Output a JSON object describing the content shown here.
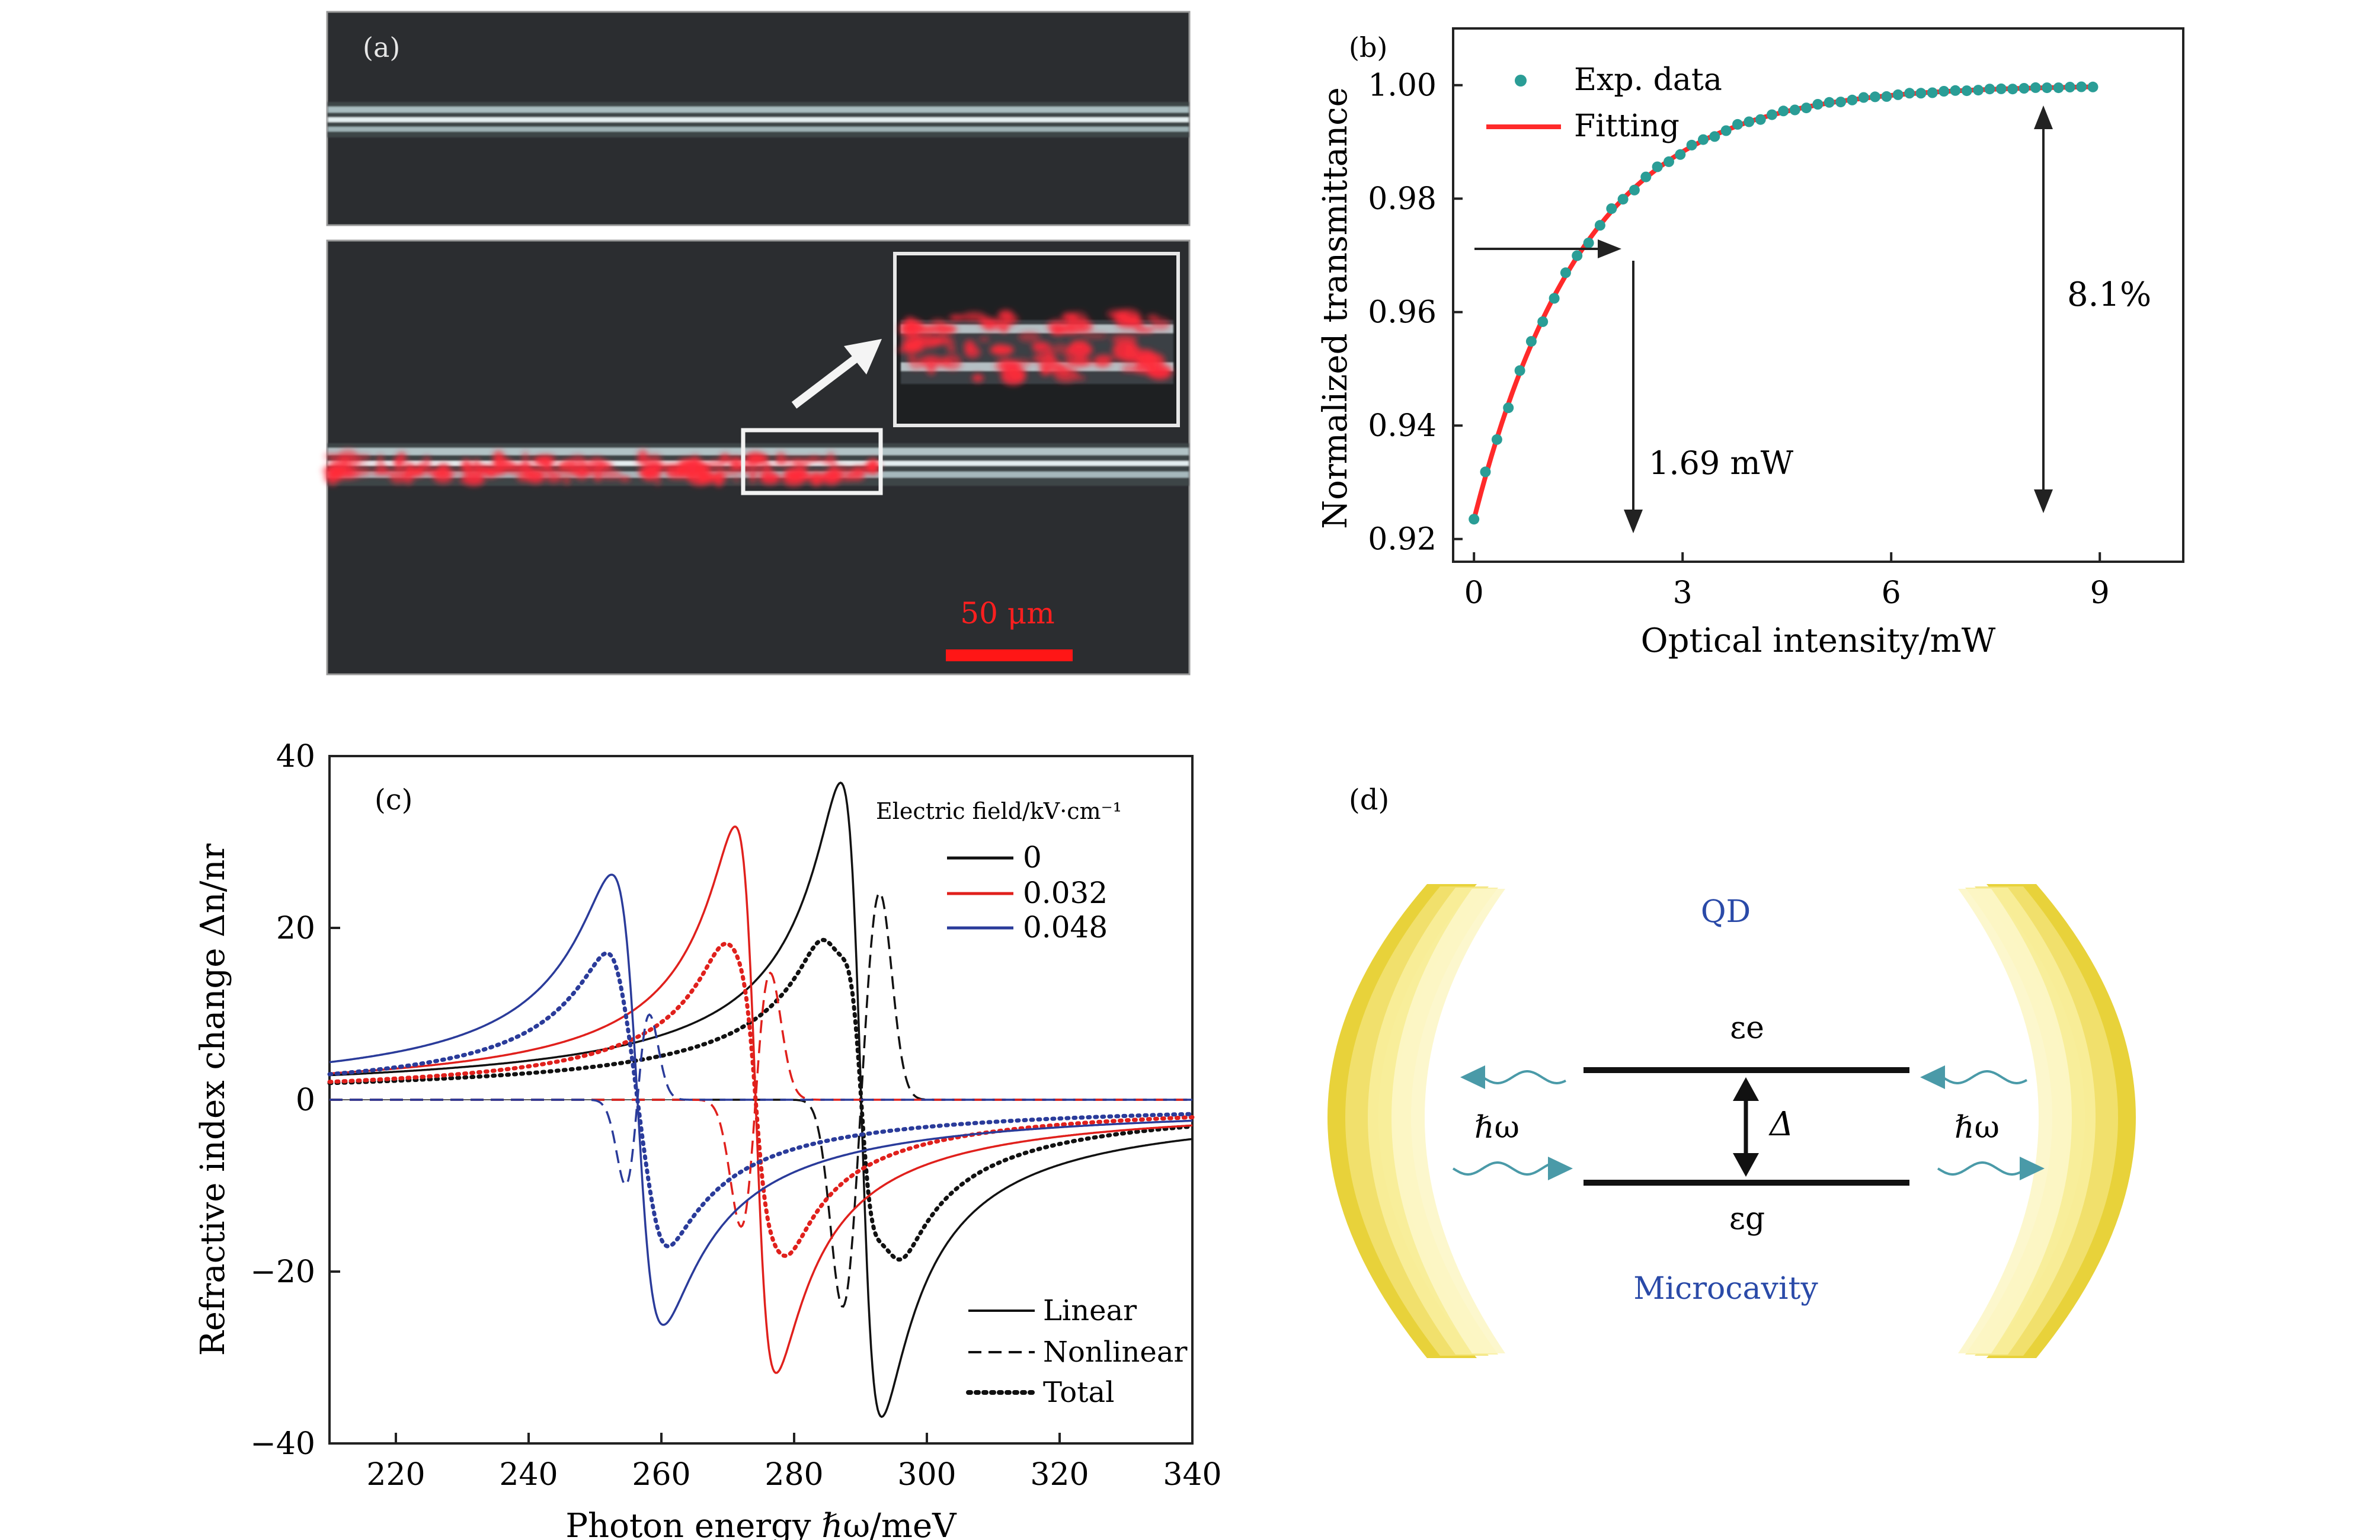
{
  "panel_a": {
    "label": "(a)",
    "scale_bar": "50 μm",
    "colors": {
      "background": "#2a2c2e",
      "fiber": "#d8e4e6",
      "glow": "#ff2a3a",
      "scale": "#ff1a1a"
    }
  },
  "panel_b": {
    "label": "(b)",
    "annotation_power": "1.69 mW",
    "annotation_depth": "8.1%",
    "colors": {
      "data": "#2a9d96",
      "fit": "#ff2a2a"
    }
  },
  "panel_c": {
    "label": "(c)",
    "legend_title": "Electric field/kV·cm⁻¹",
    "legend_series": [
      "0",
      "0.032",
      "0.048"
    ],
    "legend_styles": [
      "Linear",
      "Nonlinear",
      "Total"
    ],
    "colors": {
      "s0": "#111111",
      "s1": "#e0201c",
      "s2": "#2a3b9a"
    }
  },
  "panel_d": {
    "label": "(d)",
    "qd_label": "QD",
    "cavity_label": "Microcavity",
    "level_e": "εe",
    "level_g": "εg",
    "gap_label": "Δ",
    "photon_left": "ℏω",
    "photon_right": "ℏω",
    "colors": {
      "mirror": "#f0d84a",
      "wave": "#4a9aa8",
      "text_blue": "#2a4aa8"
    }
  },
  "chart_data": [
    {
      "type": "scatter",
      "title": "(b)",
      "xlabel": "Optical intensity/mW",
      "ylabel": "Normalized transmittance",
      "xlim": [
        -0.3,
        10.2
      ],
      "ylim": [
        0.916,
        1.01
      ],
      "xticks": [
        0,
        3,
        6,
        9
      ],
      "yticks": [
        0.92,
        0.94,
        0.96,
        0.98,
        1.0
      ],
      "ytick_labels": [
        "0.92",
        "0.94",
        "0.96",
        "0.98",
        "1.00"
      ],
      "legend": [
        "Exp. data",
        "Fitting"
      ],
      "fit_model": {
        "y0": 0.9235,
        "ymax": 1.0,
        "tau_mW": 1.6
      },
      "series": [
        {
          "name": "Exp. data",
          "style": "markers",
          "x_range": [
            0.0,
            8.9
          ],
          "n_points": 55
        },
        {
          "name": "Fitting",
          "style": "line"
        }
      ],
      "annotations": [
        {
          "text": "1.69 mW",
          "x": 1.69,
          "y": 0.97
        },
        {
          "text": "8.1%",
          "x": 7.9
        }
      ]
    },
    {
      "type": "line",
      "title": "(c)",
      "xlabel": "Photon energy ℏω/meV",
      "ylabel": "Refractive index change Δn/nr",
      "xlim": [
        210,
        340
      ],
      "ylim": [
        -40,
        40
      ],
      "xticks": [
        220,
        240,
        260,
        280,
        300,
        320,
        340
      ],
      "yticks": [
        -40,
        -20,
        0,
        20,
        40
      ],
      "ytick_labels": [
        "−40",
        "−20",
        "0",
        "20",
        "40"
      ],
      "series": [
        {
          "name": "0",
          "center": 290.1,
          "linear_amp": 36.9,
          "linear_width": 3.1,
          "nonlinear_amp": 24.5,
          "nonlinear_sep": 2.7,
          "nonlinear_width": 1.9
        },
        {
          "name": "0.032",
          "center": 274.2,
          "linear_amp": 31.8,
          "linear_width": 3.1,
          "nonlinear_amp": 17.5,
          "nonlinear_sep": 1.7,
          "nonlinear_width": 1.9
        },
        {
          "name": "0.048",
          "center": 256.4,
          "linear_amp": 26.2,
          "linear_width": 3.9,
          "nonlinear_amp": 12.4,
          "nonlinear_sep": 1.3,
          "nonlinear_width": 1.6
        }
      ]
    }
  ]
}
